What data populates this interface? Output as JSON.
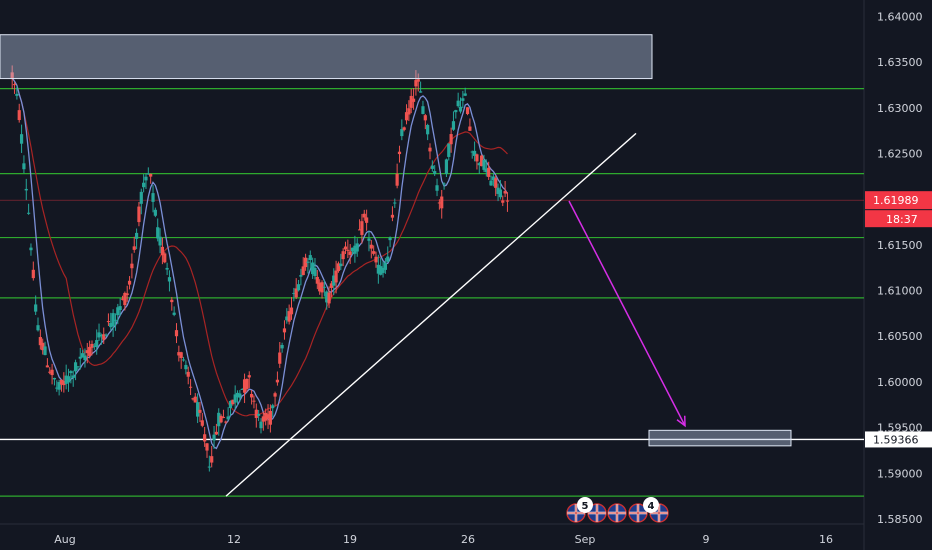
{
  "chart_data": {
    "type": "candlestick",
    "y_axis": {
      "ticks": [
        "1.64000",
        "1.63500",
        "1.63000",
        "1.62500",
        "1.62000",
        "1.61500",
        "1.61000",
        "1.60500",
        "1.60000",
        "1.59500",
        "1.59000",
        "1.58500"
      ],
      "range": [
        1.5816,
        1.6418
      ]
    },
    "x_axis": {
      "ticks": [
        "Aug",
        "12",
        "19",
        "26",
        "Sep",
        "9",
        "16"
      ]
    },
    "last_price": "1.61989",
    "countdown": "18:37",
    "level_label": "1.59366",
    "events": [
      "5",
      "4"
    ],
    "horizontal_levels": [
      1.6321,
      1.6228,
      1.6158,
      1.6092,
      1.5875
    ],
    "white_level": 1.5937,
    "zones": [
      {
        "name": "supply-zone",
        "top": 1.638,
        "bottom": 1.6332
      },
      {
        "name": "target-zone",
        "top": 1.5947,
        "bottom": 1.593
      }
    ],
    "trendline": {
      "from": 1.5875,
      "to": 1.6272
    },
    "projection": {
      "from": 1.6198,
      "to": 1.5952
    },
    "colors": {
      "background": "#131722",
      "up": "#26a69a",
      "down": "#ef5350",
      "level": "#2eaa2e",
      "ma_blue": "#7b8fd6",
      "ma_red": "#a82424",
      "arrow": "#d62ee6",
      "price_tag": "#f23645",
      "zone": "#b2c3e0"
    }
  }
}
